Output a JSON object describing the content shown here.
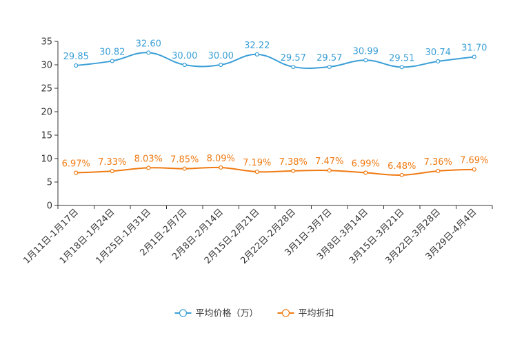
{
  "chart_data": {
    "type": "line",
    "title": "",
    "xlabel": "",
    "ylabel": "",
    "ylim": [
      0,
      35
    ],
    "yticks": [
      0,
      5,
      10,
      15,
      20,
      25,
      30,
      35
    ],
    "grid": false,
    "legend_position": "bottom-center",
    "categories": [
      "1月11日-1月17日",
      "1月18日-1月24日",
      "1月25日-1月31日",
      "2月1日-2月7日",
      "2月8日-2月14日",
      "2月15日-2月21日",
      "2月22日-2月28日",
      "3月1日-3月7日",
      "3月8日-3月14日",
      "3月15日-3月21日",
      "3月22日-3月28日",
      "3月29日-4月4日"
    ],
    "series": [
      {
        "name": "平均价格（万）",
        "color": "#3a9fd6",
        "values": [
          29.85,
          30.82,
          32.6,
          30.0,
          30.0,
          32.22,
          29.57,
          29.57,
          30.99,
          29.51,
          30.74,
          31.7
        ],
        "labels": [
          "29.85",
          "30.82",
          "32.60",
          "30.00",
          "30.00",
          "32.22",
          "29.57",
          "29.57",
          "30.99",
          "29.51",
          "30.74",
          "31.70"
        ]
      },
      {
        "name": "平均折扣",
        "color": "#f07a12",
        "values": [
          6.97,
          7.33,
          8.03,
          7.85,
          8.09,
          7.19,
          7.38,
          7.47,
          6.99,
          6.48,
          7.36,
          7.69
        ],
        "labels": [
          "6.97%",
          "7.33%",
          "8.03%",
          "7.85%",
          "8.09%",
          "7.19%",
          "7.38%",
          "7.47%",
          "6.99%",
          "6.48%",
          "7.36%",
          "7.69%"
        ]
      }
    ]
  }
}
